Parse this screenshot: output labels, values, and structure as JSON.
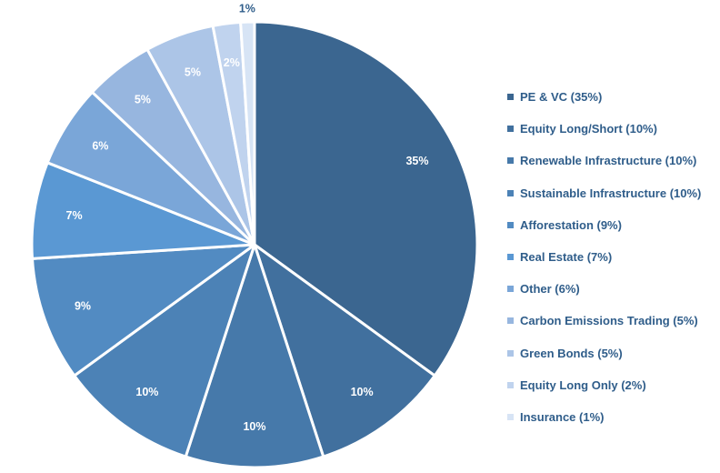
{
  "chart_data": {
    "type": "pie",
    "title": "",
    "start_angle_deg": 0,
    "direction": "clockwise",
    "slices": [
      {
        "label": "PE & VC (35%)",
        "value": 35,
        "data_label": "35%",
        "color": "#3b6690",
        "label_color": "#ffffff"
      },
      {
        "label": "Equity Long/Short (10%)",
        "value": 10,
        "data_label": "10%",
        "color": "#41709e",
        "label_color": "#ffffff"
      },
      {
        "label": "Renewable Infrastructure (10%)",
        "value": 10,
        "data_label": "10%",
        "color": "#4679aa",
        "label_color": "#ffffff"
      },
      {
        "label": "Sustainable Infrastructure (10%)",
        "value": 10,
        "data_label": "10%",
        "color": "#4c82b6",
        "label_color": "#ffffff"
      },
      {
        "label": "Afforestation (9%)",
        "value": 9,
        "data_label": "9%",
        "color": "#528bc2",
        "label_color": "#ffffff"
      },
      {
        "label": "Real Estate (7%)",
        "value": 7,
        "data_label": "7%",
        "color": "#5a98d3",
        "label_color": "#ffffff"
      },
      {
        "label": "Other (6%)",
        "value": 6,
        "data_label": "6%",
        "color": "#7aa6d8",
        "label_color": "#ffffff"
      },
      {
        "label": "Carbon Emissions Trading (5%)",
        "value": 5,
        "data_label": "5%",
        "color": "#97b6df",
        "label_color": "#ffffff"
      },
      {
        "label": "Green Bonds (5%)",
        "value": 5,
        "data_label": "5%",
        "color": "#acc5e7",
        "label_color": "#ffffff"
      },
      {
        "label": "Equity Long Only (2%)",
        "value": 2,
        "data_label": "2%",
        "color": "#c0d3ee",
        "label_color": "#ffffff"
      },
      {
        "label": "Insurance (1%)",
        "value": 1,
        "data_label": "1%",
        "color": "#d7e4f5",
        "label_color": "#2f5d8a"
      }
    ],
    "legend_position": "right"
  }
}
